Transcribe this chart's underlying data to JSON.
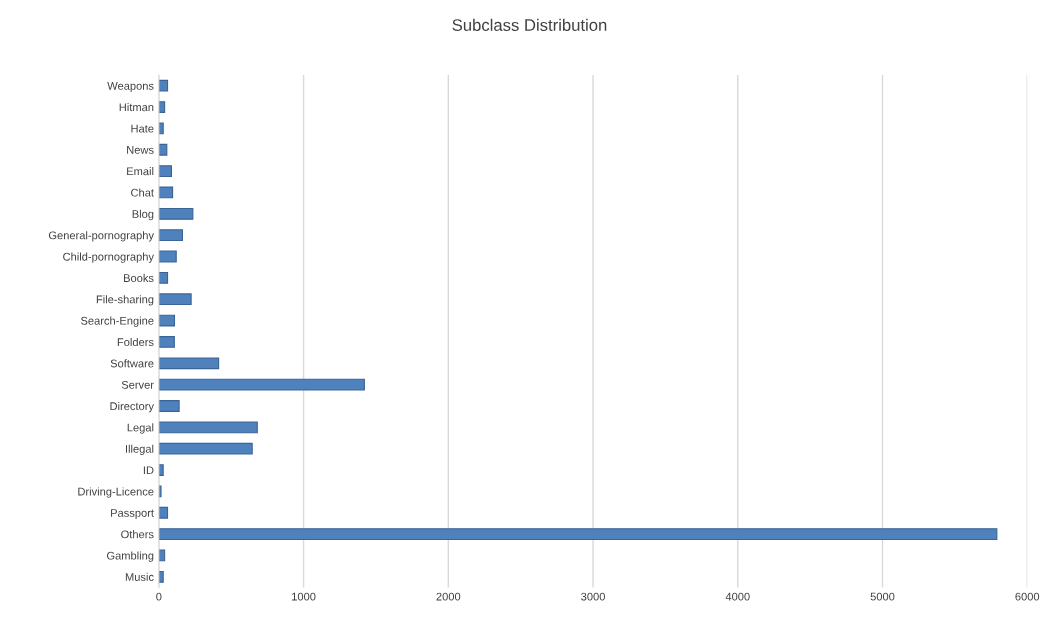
{
  "chart_data": {
    "type": "bar",
    "orientation": "horizontal",
    "title": "Subclass Distribution",
    "categories": [
      "Weapons",
      "Hitman",
      "Hate",
      "News",
      "Email",
      "Chat",
      "Blog",
      "General-pornography",
      "Child-pornography",
      "Books",
      "File-sharing",
      "Search-Engine",
      "Folders",
      "Software",
      "Server",
      "Directory",
      "Legal",
      "Illegal",
      "ID",
      "Driving-Licence",
      "Passport",
      "Others",
      "Gambling",
      "Music"
    ],
    "values": [
      60,
      40,
      30,
      55,
      87,
      95,
      235,
      163,
      120,
      60,
      223,
      108,
      107,
      413,
      1420,
      140,
      680,
      645,
      30,
      15,
      60,
      5790,
      40,
      30
    ],
    "color": "#4f81bd",
    "xlim": [
      0,
      6000
    ],
    "xticks": [
      0,
      1000,
      2000,
      3000,
      4000,
      5000,
      6000
    ],
    "grid": "x",
    "legend": false
  }
}
